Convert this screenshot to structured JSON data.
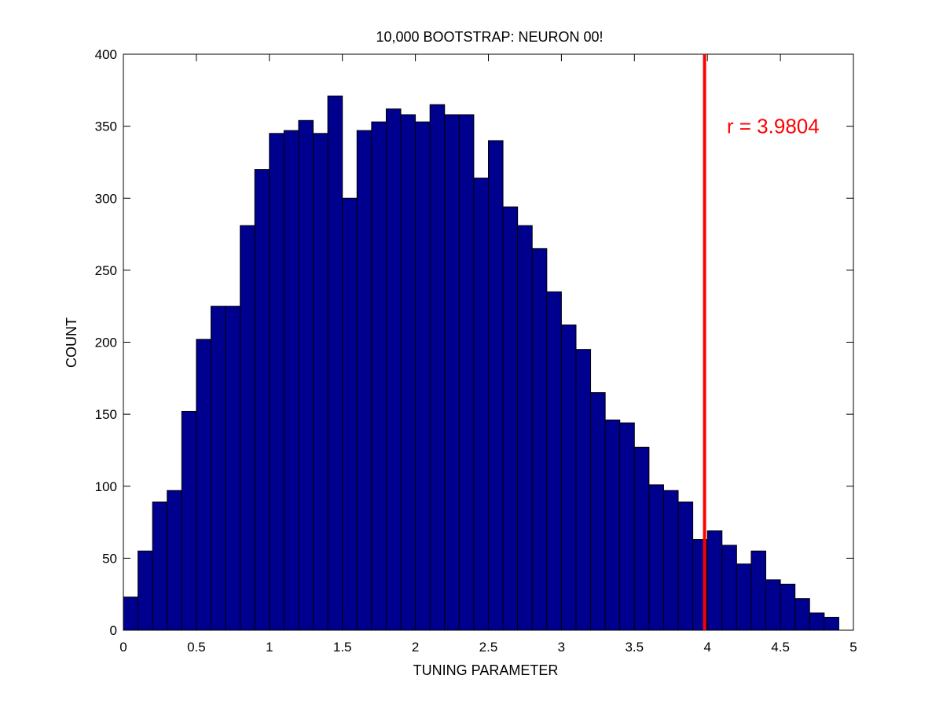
{
  "chart_data": {
    "type": "bar",
    "title": "10,000 BOOTSTRAP: NEURON 00!",
    "xlabel": "TUNING PARAMETER",
    "ylabel": "COUNT",
    "xlim": [
      0,
      5
    ],
    "ylim": [
      0,
      400
    ],
    "xticks": [
      0,
      0.5,
      1,
      1.5,
      2,
      2.5,
      3,
      3.5,
      4,
      4.5,
      5
    ],
    "xtick_labels": [
      "0",
      "0.5",
      "1",
      "1.5",
      "2",
      "2.5",
      "3",
      "3.5",
      "4",
      "4.5",
      "5"
    ],
    "yticks": [
      0,
      50,
      100,
      150,
      200,
      250,
      300,
      350,
      400
    ],
    "ytick_labels": [
      "0",
      "50",
      "100",
      "150",
      "200",
      "250",
      "300",
      "350",
      "400"
    ],
    "bin_width": 0.1,
    "bin_centers": [
      0.05,
      0.15,
      0.25,
      0.35,
      0.45,
      0.55,
      0.65,
      0.75,
      0.85,
      0.95,
      1.05,
      1.15,
      1.25,
      1.35,
      1.45,
      1.55,
      1.65,
      1.75,
      1.85,
      1.95,
      2.05,
      2.15,
      2.25,
      2.35,
      2.45,
      2.55,
      2.65,
      2.75,
      2.85,
      2.95,
      3.05,
      3.15,
      3.25,
      3.35,
      3.45,
      3.55,
      3.65,
      3.75,
      3.85,
      3.95,
      4.05,
      4.15,
      4.25,
      4.35,
      4.45,
      4.55,
      4.65,
      4.75,
      4.85
    ],
    "values": [
      23,
      55,
      89,
      97,
      152,
      202,
      225,
      225,
      281,
      320,
      345,
      347,
      354,
      345,
      371,
      300,
      347,
      353,
      362,
      358,
      353,
      365,
      358,
      358,
      314,
      340,
      294,
      281,
      265,
      235,
      212,
      195,
      165,
      146,
      144,
      127,
      101,
      97,
      89,
      63,
      69,
      59,
      46,
      55,
      35,
      32,
      22,
      12,
      9
    ],
    "bar_color": "#00008f",
    "bar_edge_color": "#000000",
    "grid": false,
    "vline": {
      "x": 3.9804,
      "color": "#ff0000"
    },
    "annotation": {
      "text": "r = 3.9804",
      "x": 4.45,
      "y": 350,
      "color": "#ff0000"
    }
  }
}
